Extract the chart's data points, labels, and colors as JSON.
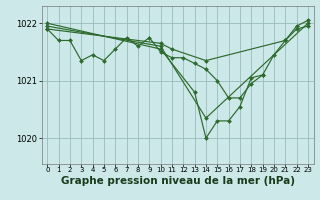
{
  "background_color": "#cce8e8",
  "grid_color": "#99bbbb",
  "line_color": "#2d6a2d",
  "marker_color": "#2d6a2d",
  "xlabel": "Graphe pression niveau de la mer (hPa)",
  "xlabel_fontsize": 7.5,
  "ylim": [
    1019.55,
    1022.3
  ],
  "xlim": [
    -0.5,
    23.5
  ],
  "yticks": [
    1020,
    1021,
    1022
  ],
  "xticks": [
    0,
    1,
    2,
    3,
    4,
    5,
    6,
    7,
    8,
    9,
    10,
    11,
    12,
    13,
    14,
    15,
    16,
    17,
    18,
    19,
    20,
    21,
    22,
    23
  ],
  "series": [
    {
      "points": [
        [
          0,
          1021.9
        ],
        [
          1,
          1021.7
        ],
        [
          2,
          1021.7
        ],
        [
          3,
          1021.35
        ],
        [
          4,
          1021.45
        ],
        [
          5,
          1021.35
        ],
        [
          6,
          1021.55
        ],
        [
          7,
          1021.75
        ],
        [
          8,
          1021.6
        ],
        [
          9,
          1021.75
        ],
        [
          10,
          1021.5
        ],
        [
          11,
          1021.4
        ],
        [
          12,
          1021.4
        ],
        [
          13,
          1021.3
        ],
        [
          14,
          1021.2
        ],
        [
          15,
          1021.0
        ],
        [
          16,
          1020.7
        ],
        [
          17,
          1020.7
        ],
        [
          18,
          1020.95
        ],
        [
          19,
          1021.1
        ],
        [
          20,
          1021.45
        ],
        [
          21,
          1021.7
        ],
        [
          22,
          1021.9
        ],
        [
          23,
          1021.95
        ]
      ]
    },
    {
      "points": [
        [
          0,
          1021.95
        ],
        [
          10,
          1021.6
        ],
        [
          14,
          1020.35
        ],
        [
          23,
          1022.0
        ]
      ]
    },
    {
      "points": [
        [
          0,
          1022.0
        ],
        [
          10,
          1021.55
        ],
        [
          13,
          1020.8
        ],
        [
          14,
          1020.0
        ],
        [
          15,
          1020.3
        ],
        [
          16,
          1020.3
        ],
        [
          17,
          1020.55
        ],
        [
          18,
          1021.05
        ],
        [
          19,
          1021.1
        ]
      ]
    },
    {
      "points": [
        [
          0,
          1021.9
        ],
        [
          10,
          1021.65
        ],
        [
          11,
          1021.55
        ],
        [
          14,
          1021.35
        ],
        [
          21,
          1021.7
        ],
        [
          22,
          1021.95
        ],
        [
          23,
          1022.05
        ]
      ]
    }
  ]
}
